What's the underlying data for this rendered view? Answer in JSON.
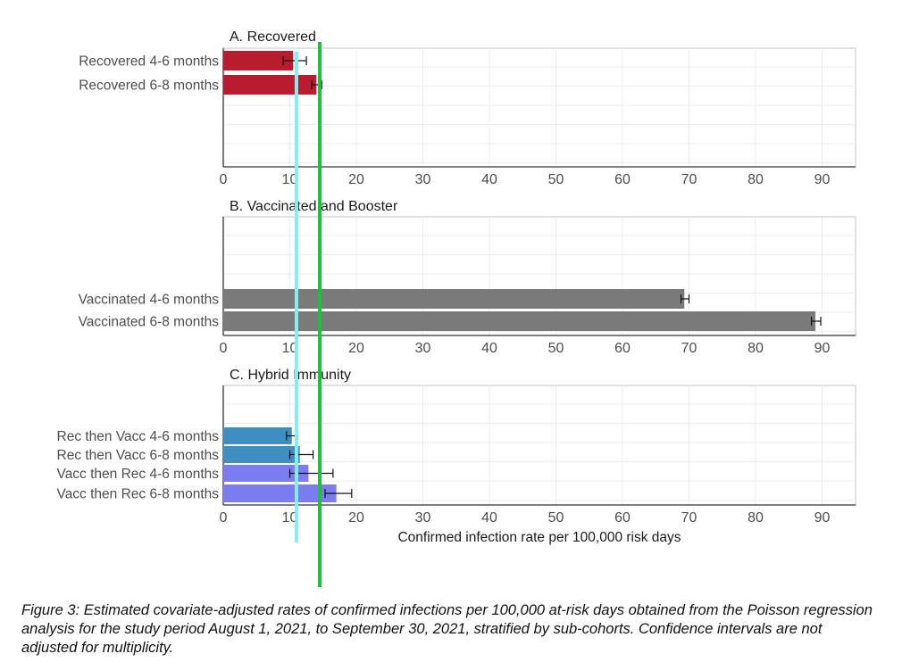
{
  "chart_data": [
    {
      "type": "bar",
      "orientation": "horizontal",
      "title": "A. Recovered",
      "categories": [
        "Recovered 4-6 months",
        "Recovered 6-8 months"
      ],
      "values": [
        10.5,
        14.0
      ],
      "ci_low": [
        9.0,
        13.3
      ],
      "ci_high": [
        12.5,
        14.8
      ],
      "colors": [
        "#b81c2e",
        "#b81c2e"
      ],
      "xlim": [
        0,
        95
      ],
      "xticks": [
        0,
        10,
        20,
        30,
        40,
        50,
        60,
        70,
        80,
        90
      ],
      "grid": true
    },
    {
      "type": "bar",
      "orientation": "horizontal",
      "title": "B. Vaccinated and Booster",
      "categories": [
        "Vaccinated 4-6 months",
        "Vaccinated 6-8 months"
      ],
      "values": [
        69.3,
        89.0
      ],
      "ci_low": [
        68.8,
        88.4
      ],
      "ci_high": [
        70.0,
        89.8
      ],
      "colors": [
        "#7a7a7a",
        "#7a7a7a"
      ],
      "xlim": [
        0,
        95
      ],
      "xticks": [
        0,
        10,
        20,
        30,
        40,
        50,
        60,
        70,
        80,
        90
      ],
      "grid": true
    },
    {
      "type": "bar",
      "orientation": "horizontal",
      "title": "C. Hybrid Immunity",
      "categories": [
        "Rec then Vacc 4-6 months",
        "Rec then Vacc 6-8 months",
        "Vacc then Rec 4-6 months",
        "Vacc then Rec 6-8 months"
      ],
      "values": [
        10.3,
        11.5,
        12.8,
        17.0
      ],
      "ci_low": [
        9.5,
        10.0,
        10.0,
        15.3
      ],
      "ci_high": [
        11.2,
        13.5,
        16.5,
        19.3
      ],
      "colors": [
        "#3f8ec2",
        "#3f8ec2",
        "#7b7bf2",
        "#7b7bf2"
      ],
      "xlim": [
        0,
        95
      ],
      "xticks": [
        0,
        10,
        20,
        30,
        40,
        50,
        60,
        70,
        80,
        90
      ],
      "xlabel": "Confirmed infection rate per 100,000 risk days",
      "grid": true
    }
  ],
  "reference_lines": [
    {
      "x": 11,
      "color": "#86eef2"
    },
    {
      "x": 14.5,
      "color": "#1fbf3a"
    }
  ],
  "caption": {
    "part1": "Figure 3: Estimated covariate-adjusted rates of confirmed infections per 100,000 at-risk days obtained from the Poisson regression analysis for the study period August 1, 2021, to September 30, 2021, stratified by sub-cohorts.",
    "part2": " Confidence intervals are not adjusted for multiplicity."
  }
}
